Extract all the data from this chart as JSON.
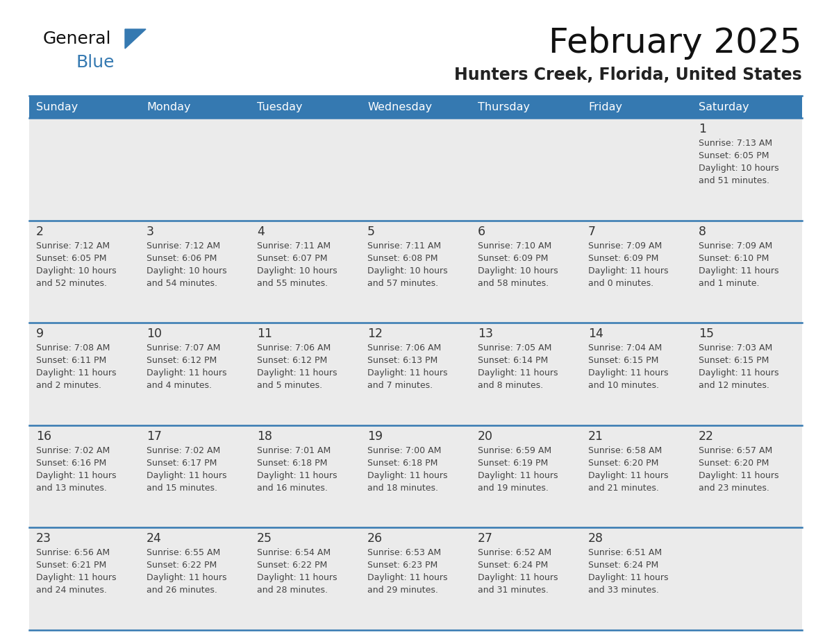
{
  "title": "February 2025",
  "subtitle": "Hunters Creek, Florida, United States",
  "days_of_week": [
    "Sunday",
    "Monday",
    "Tuesday",
    "Wednesday",
    "Thursday",
    "Friday",
    "Saturday"
  ],
  "header_bg": "#3579b1",
  "header_text": "#ffffff",
  "cell_bg_gray": "#ebebeb",
  "cell_bg_white": "#ffffff",
  "divider_color": "#3579b1",
  "text_color": "#444444",
  "day_num_color": "#333333",
  "calendar_data": [
    [
      null,
      null,
      null,
      null,
      null,
      null,
      {
        "day": 1,
        "sunrise": "7:13 AM",
        "sunset": "6:05 PM",
        "daylight": "10 hours\nand 51 minutes."
      }
    ],
    [
      {
        "day": 2,
        "sunrise": "7:12 AM",
        "sunset": "6:05 PM",
        "daylight": "10 hours\nand 52 minutes."
      },
      {
        "day": 3,
        "sunrise": "7:12 AM",
        "sunset": "6:06 PM",
        "daylight": "10 hours\nand 54 minutes."
      },
      {
        "day": 4,
        "sunrise": "7:11 AM",
        "sunset": "6:07 PM",
        "daylight": "10 hours\nand 55 minutes."
      },
      {
        "day": 5,
        "sunrise": "7:11 AM",
        "sunset": "6:08 PM",
        "daylight": "10 hours\nand 57 minutes."
      },
      {
        "day": 6,
        "sunrise": "7:10 AM",
        "sunset": "6:09 PM",
        "daylight": "10 hours\nand 58 minutes."
      },
      {
        "day": 7,
        "sunrise": "7:09 AM",
        "sunset": "6:09 PM",
        "daylight": "11 hours\nand 0 minutes."
      },
      {
        "day": 8,
        "sunrise": "7:09 AM",
        "sunset": "6:10 PM",
        "daylight": "11 hours\nand 1 minute."
      }
    ],
    [
      {
        "day": 9,
        "sunrise": "7:08 AM",
        "sunset": "6:11 PM",
        "daylight": "11 hours\nand 2 minutes."
      },
      {
        "day": 10,
        "sunrise": "7:07 AM",
        "sunset": "6:12 PM",
        "daylight": "11 hours\nand 4 minutes."
      },
      {
        "day": 11,
        "sunrise": "7:06 AM",
        "sunset": "6:12 PM",
        "daylight": "11 hours\nand 5 minutes."
      },
      {
        "day": 12,
        "sunrise": "7:06 AM",
        "sunset": "6:13 PM",
        "daylight": "11 hours\nand 7 minutes."
      },
      {
        "day": 13,
        "sunrise": "7:05 AM",
        "sunset": "6:14 PM",
        "daylight": "11 hours\nand 8 minutes."
      },
      {
        "day": 14,
        "sunrise": "7:04 AM",
        "sunset": "6:15 PM",
        "daylight": "11 hours\nand 10 minutes."
      },
      {
        "day": 15,
        "sunrise": "7:03 AM",
        "sunset": "6:15 PM",
        "daylight": "11 hours\nand 12 minutes."
      }
    ],
    [
      {
        "day": 16,
        "sunrise": "7:02 AM",
        "sunset": "6:16 PM",
        "daylight": "11 hours\nand 13 minutes."
      },
      {
        "day": 17,
        "sunrise": "7:02 AM",
        "sunset": "6:17 PM",
        "daylight": "11 hours\nand 15 minutes."
      },
      {
        "day": 18,
        "sunrise": "7:01 AM",
        "sunset": "6:18 PM",
        "daylight": "11 hours\nand 16 minutes."
      },
      {
        "day": 19,
        "sunrise": "7:00 AM",
        "sunset": "6:18 PM",
        "daylight": "11 hours\nand 18 minutes."
      },
      {
        "day": 20,
        "sunrise": "6:59 AM",
        "sunset": "6:19 PM",
        "daylight": "11 hours\nand 19 minutes."
      },
      {
        "day": 21,
        "sunrise": "6:58 AM",
        "sunset": "6:20 PM",
        "daylight": "11 hours\nand 21 minutes."
      },
      {
        "day": 22,
        "sunrise": "6:57 AM",
        "sunset": "6:20 PM",
        "daylight": "11 hours\nand 23 minutes."
      }
    ],
    [
      {
        "day": 23,
        "sunrise": "6:56 AM",
        "sunset": "6:21 PM",
        "daylight": "11 hours\nand 24 minutes."
      },
      {
        "day": 24,
        "sunrise": "6:55 AM",
        "sunset": "6:22 PM",
        "daylight": "11 hours\nand 26 minutes."
      },
      {
        "day": 25,
        "sunrise": "6:54 AM",
        "sunset": "6:22 PM",
        "daylight": "11 hours\nand 28 minutes."
      },
      {
        "day": 26,
        "sunrise": "6:53 AM",
        "sunset": "6:23 PM",
        "daylight": "11 hours\nand 29 minutes."
      },
      {
        "day": 27,
        "sunrise": "6:52 AM",
        "sunset": "6:24 PM",
        "daylight": "11 hours\nand 31 minutes."
      },
      {
        "day": 28,
        "sunrise": "6:51 AM",
        "sunset": "6:24 PM",
        "daylight": "11 hours\nand 33 minutes."
      },
      null
    ]
  ],
  "logo_text_general": "General",
  "logo_text_blue": "Blue",
  "logo_triangle_color": "#3579b1",
  "logo_general_color": "#111111"
}
